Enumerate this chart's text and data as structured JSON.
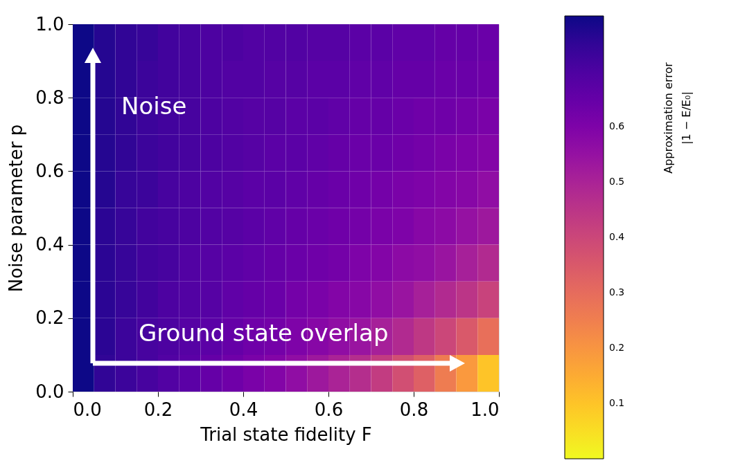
{
  "chart_data": {
    "type": "heatmap",
    "xlabel": "Trial state fidelity F",
    "ylabel": "Noise parameter p",
    "clabel": "Approximation error\n|1 − E/E₀|",
    "annotations": [
      "Noise",
      "Ground state overlap"
    ],
    "xlim": [
      0,
      1
    ],
    "xticks": [
      {
        "value": 0,
        "label": "0.0"
      },
      {
        "value": 0.2,
        "label": "0.2"
      },
      {
        "value": 0.4,
        "label": "0.4"
      },
      {
        "value": 0.6,
        "label": "0.6"
      },
      {
        "value": 0.8,
        "label": "0.8"
      },
      {
        "value": 1,
        "label": "1.0"
      }
    ],
    "ylim": [
      0,
      1
    ],
    "yticks": [
      {
        "value": 0,
        "label": "0.0"
      },
      {
        "value": 0.2,
        "label": "0.2"
      },
      {
        "value": 0.4,
        "label": "0.4"
      },
      {
        "value": 0.6,
        "label": "0.6"
      },
      {
        "value": 0.8,
        "label": "0.8"
      },
      {
        "value": 1,
        "label": "1.0"
      }
    ],
    "clim": [
      0,
      0.8
    ],
    "cticks": [
      0.1,
      0.2,
      0.3,
      0.4,
      0.5,
      0.6
    ],
    "cells": [
      [
        0.8,
        0.77,
        0.75,
        0.74,
        0.72,
        0.71,
        0.7,
        0.7,
        0.69,
        0.69,
        0.69,
        0.68,
        0.68,
        0.67,
        0.67,
        0.66,
        0.66,
        0.65,
        0.65,
        0.64
      ],
      [
        0.8,
        0.77,
        0.75,
        0.73,
        0.72,
        0.71,
        0.7,
        0.69,
        0.69,
        0.68,
        0.68,
        0.67,
        0.67,
        0.66,
        0.66,
        0.65,
        0.65,
        0.64,
        0.64,
        0.63
      ],
      [
        0.8,
        0.77,
        0.75,
        0.73,
        0.72,
        0.71,
        0.7,
        0.69,
        0.68,
        0.68,
        0.67,
        0.67,
        0.66,
        0.65,
        0.65,
        0.64,
        0.63,
        0.63,
        0.62,
        0.61
      ],
      [
        0.8,
        0.77,
        0.75,
        0.73,
        0.72,
        0.71,
        0.7,
        0.69,
        0.68,
        0.67,
        0.67,
        0.66,
        0.65,
        0.64,
        0.64,
        0.63,
        0.62,
        0.61,
        0.6,
        0.59
      ],
      [
        0.8,
        0.77,
        0.74,
        0.73,
        0.71,
        0.7,
        0.69,
        0.68,
        0.67,
        0.67,
        0.66,
        0.65,
        0.64,
        0.63,
        0.62,
        0.61,
        0.6,
        0.59,
        0.58,
        0.56
      ],
      [
        0.8,
        0.76,
        0.74,
        0.72,
        0.71,
        0.7,
        0.69,
        0.68,
        0.67,
        0.66,
        0.65,
        0.64,
        0.63,
        0.62,
        0.61,
        0.6,
        0.58,
        0.57,
        0.55,
        0.53
      ],
      [
        0.8,
        0.76,
        0.74,
        0.72,
        0.71,
        0.69,
        0.68,
        0.67,
        0.66,
        0.65,
        0.64,
        0.63,
        0.62,
        0.6,
        0.59,
        0.57,
        0.56,
        0.54,
        0.51,
        0.48
      ],
      [
        0.8,
        0.76,
        0.74,
        0.72,
        0.7,
        0.69,
        0.68,
        0.66,
        0.65,
        0.64,
        0.62,
        0.61,
        0.59,
        0.58,
        0.56,
        0.54,
        0.51,
        0.48,
        0.45,
        0.41
      ],
      [
        0.8,
        0.76,
        0.73,
        0.71,
        0.7,
        0.68,
        0.67,
        0.65,
        0.63,
        0.62,
        0.6,
        0.58,
        0.56,
        0.54,
        0.51,
        0.48,
        0.44,
        0.4,
        0.35,
        0.29
      ],
      [
        0.8,
        0.75,
        0.73,
        0.71,
        0.69,
        0.67,
        0.65,
        0.63,
        0.61,
        0.59,
        0.56,
        0.53,
        0.5,
        0.47,
        0.43,
        0.38,
        0.33,
        0.26,
        0.19,
        0.1
      ]
    ]
  }
}
